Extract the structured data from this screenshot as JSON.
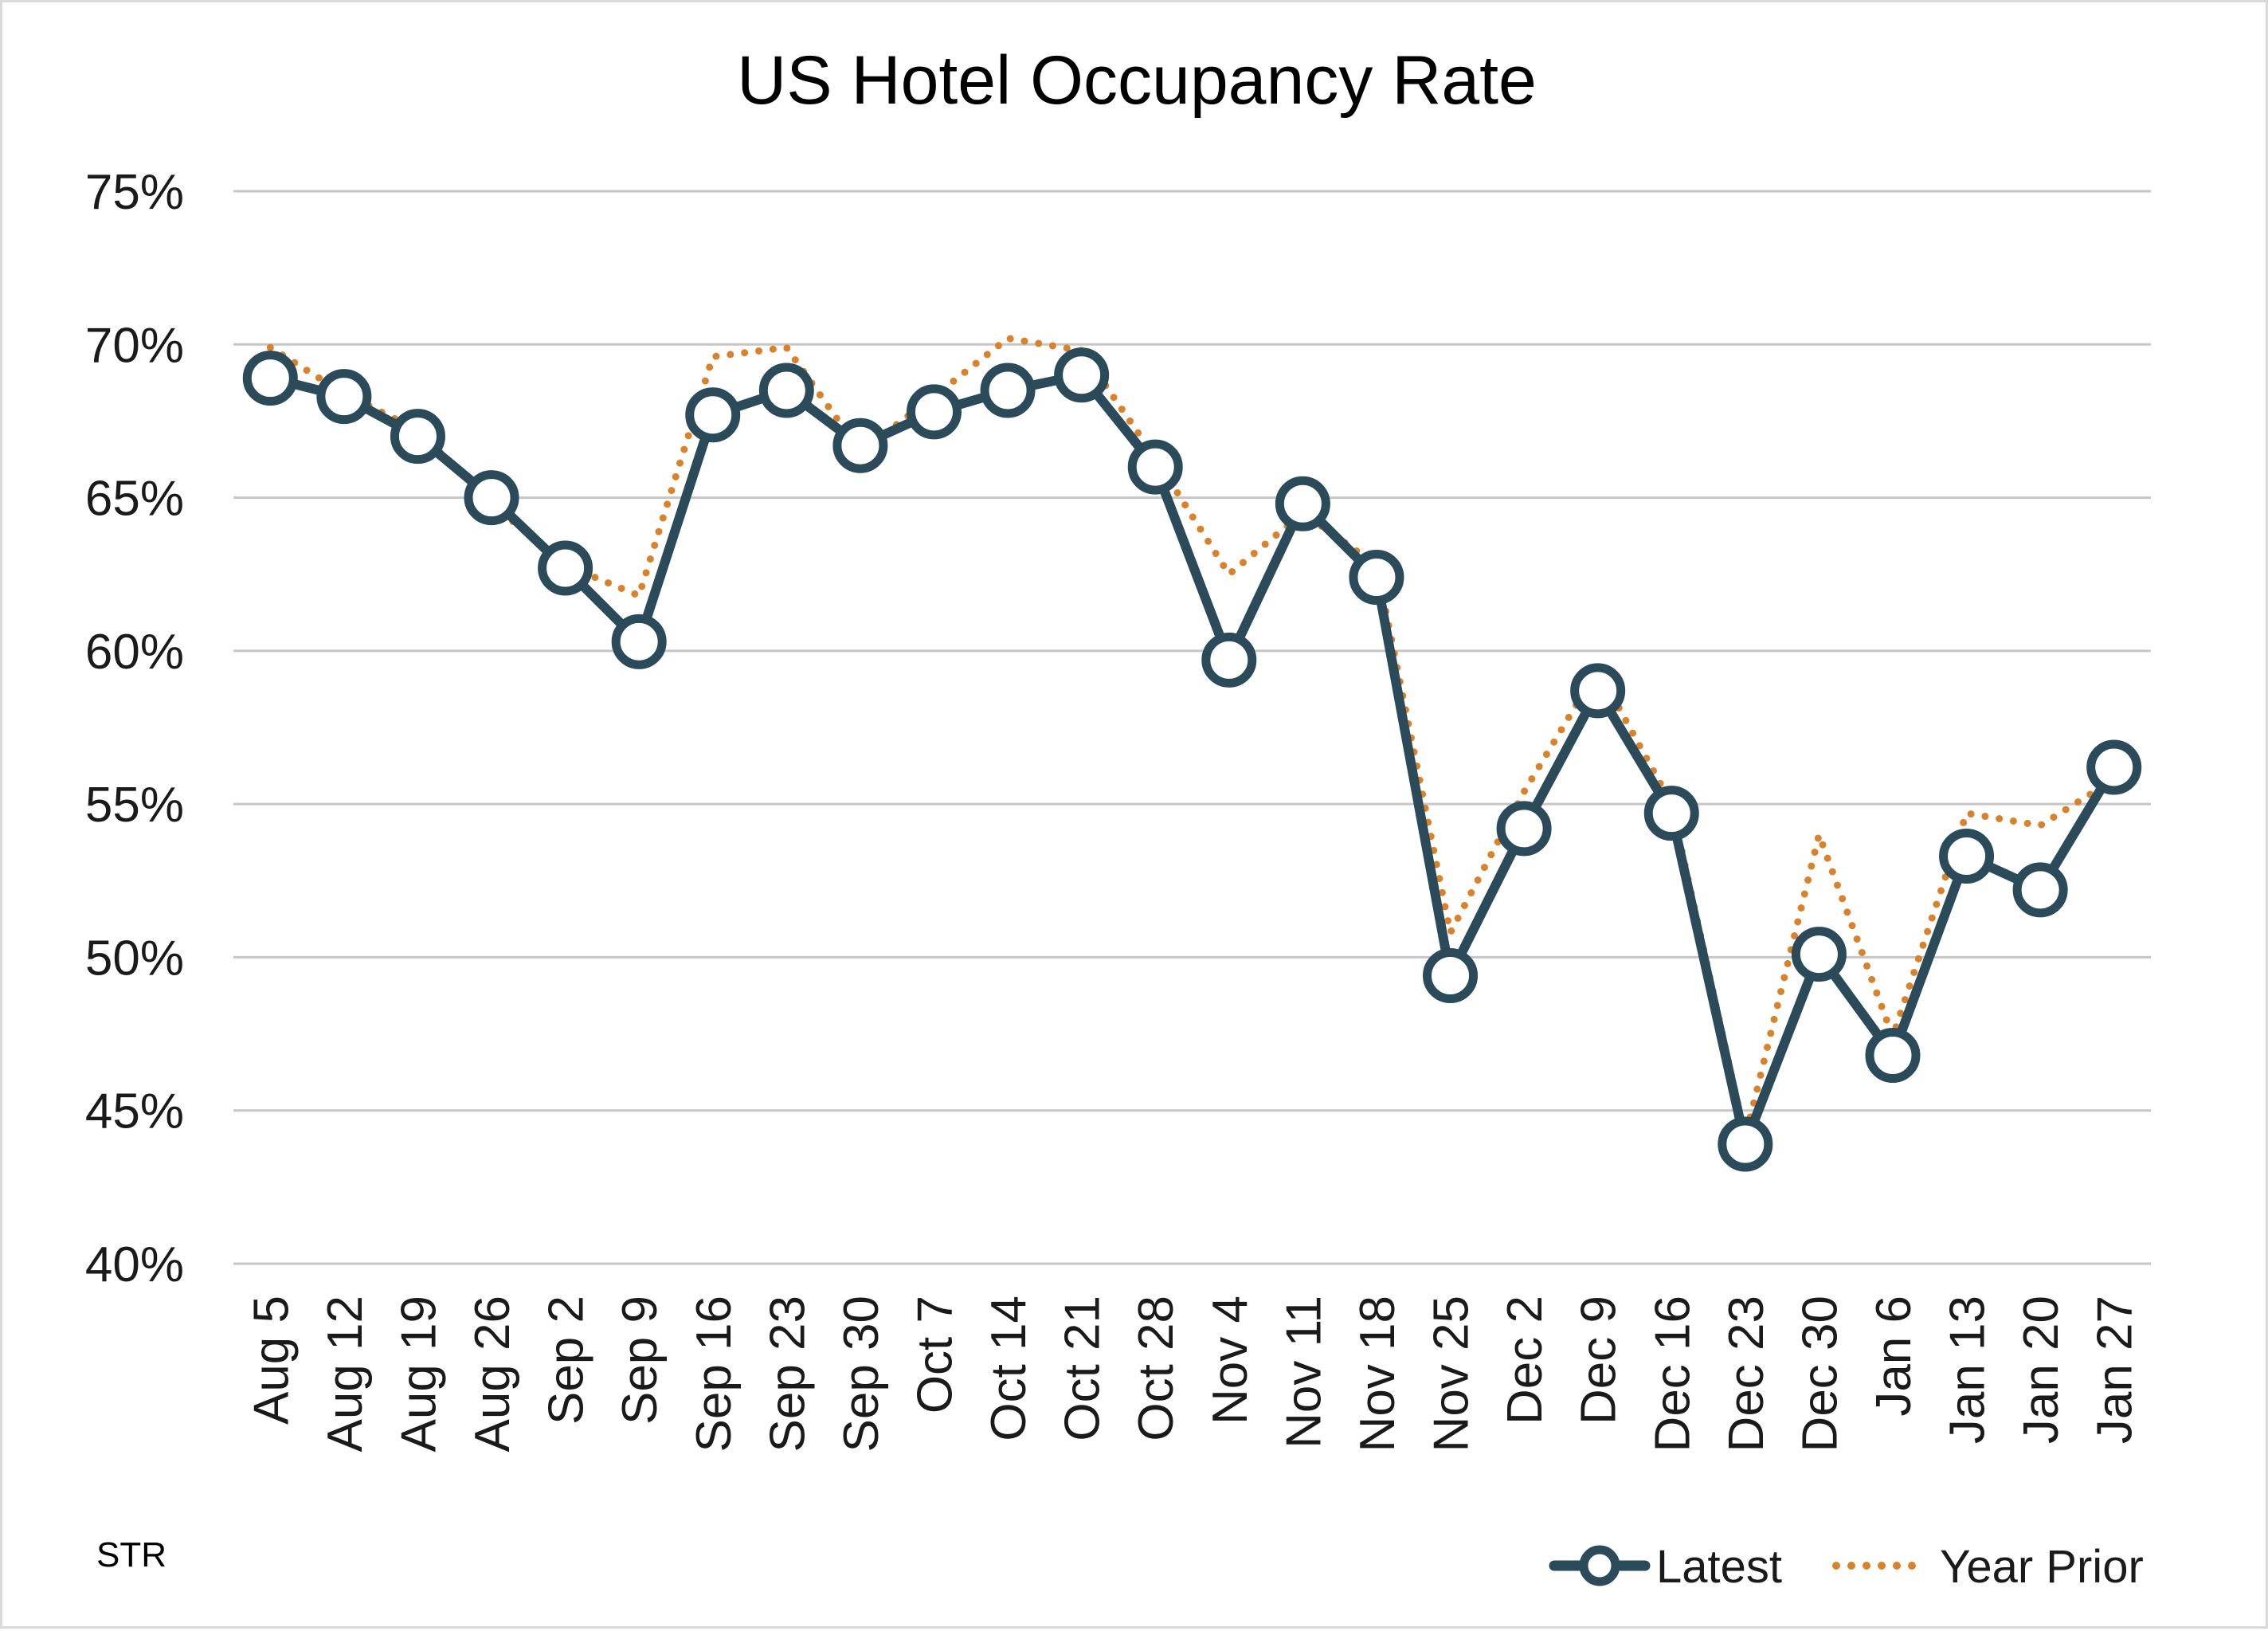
{
  "chart_data": {
    "type": "line",
    "title": "US Hotel Occupancy Rate",
    "xlabel": "",
    "ylabel": "",
    "ylim": [
      40,
      75
    ],
    "yticks": [
      40,
      45,
      50,
      55,
      60,
      65,
      70,
      75
    ],
    "ytick_format": "{v}%",
    "grid": true,
    "legend_position": "bottom-right",
    "categories": [
      "Aug 5",
      "Aug 12",
      "Aug 19",
      "Aug 26",
      "Sep 2",
      "Sep 9",
      "Sep 16",
      "Sep 23",
      "Sep 30",
      "Oct 7",
      "Oct 14",
      "Oct 21",
      "Oct 28",
      "Nov 4",
      "Nov 11",
      "Nov 18",
      "Nov 25",
      "Dec 2",
      "Dec 9",
      "Dec 16",
      "Dec 23",
      "Dec 30",
      "Jan 6",
      "Jan 13",
      "Jan 20",
      "Jan 27"
    ],
    "series": [
      {
        "name": "Latest",
        "color": "#2b4a5a",
        "style": "solid-with-markers",
        "values": [
          68.9,
          68.3,
          67.0,
          65.0,
          62.7,
          60.3,
          67.7,
          68.5,
          66.7,
          67.8,
          68.5,
          69.0,
          66.0,
          59.7,
          64.8,
          62.4,
          49.4,
          54.2,
          58.7,
          54.7,
          43.9,
          50.1,
          46.8,
          53.3,
          52.2,
          56.2
        ]
      },
      {
        "name": "Year Prior",
        "color": "#d9822b",
        "style": "dotted",
        "values": [
          69.9,
          68.4,
          67.2,
          64.8,
          62.8,
          61.8,
          69.6,
          69.9,
          66.5,
          68.3,
          70.2,
          69.8,
          66.3,
          62.5,
          64.5,
          62.8,
          50.8,
          55.4,
          59.4,
          55.0,
          44.1,
          54.0,
          47.4,
          54.7,
          54.3,
          55.8
        ]
      }
    ],
    "source_note": "STR"
  }
}
